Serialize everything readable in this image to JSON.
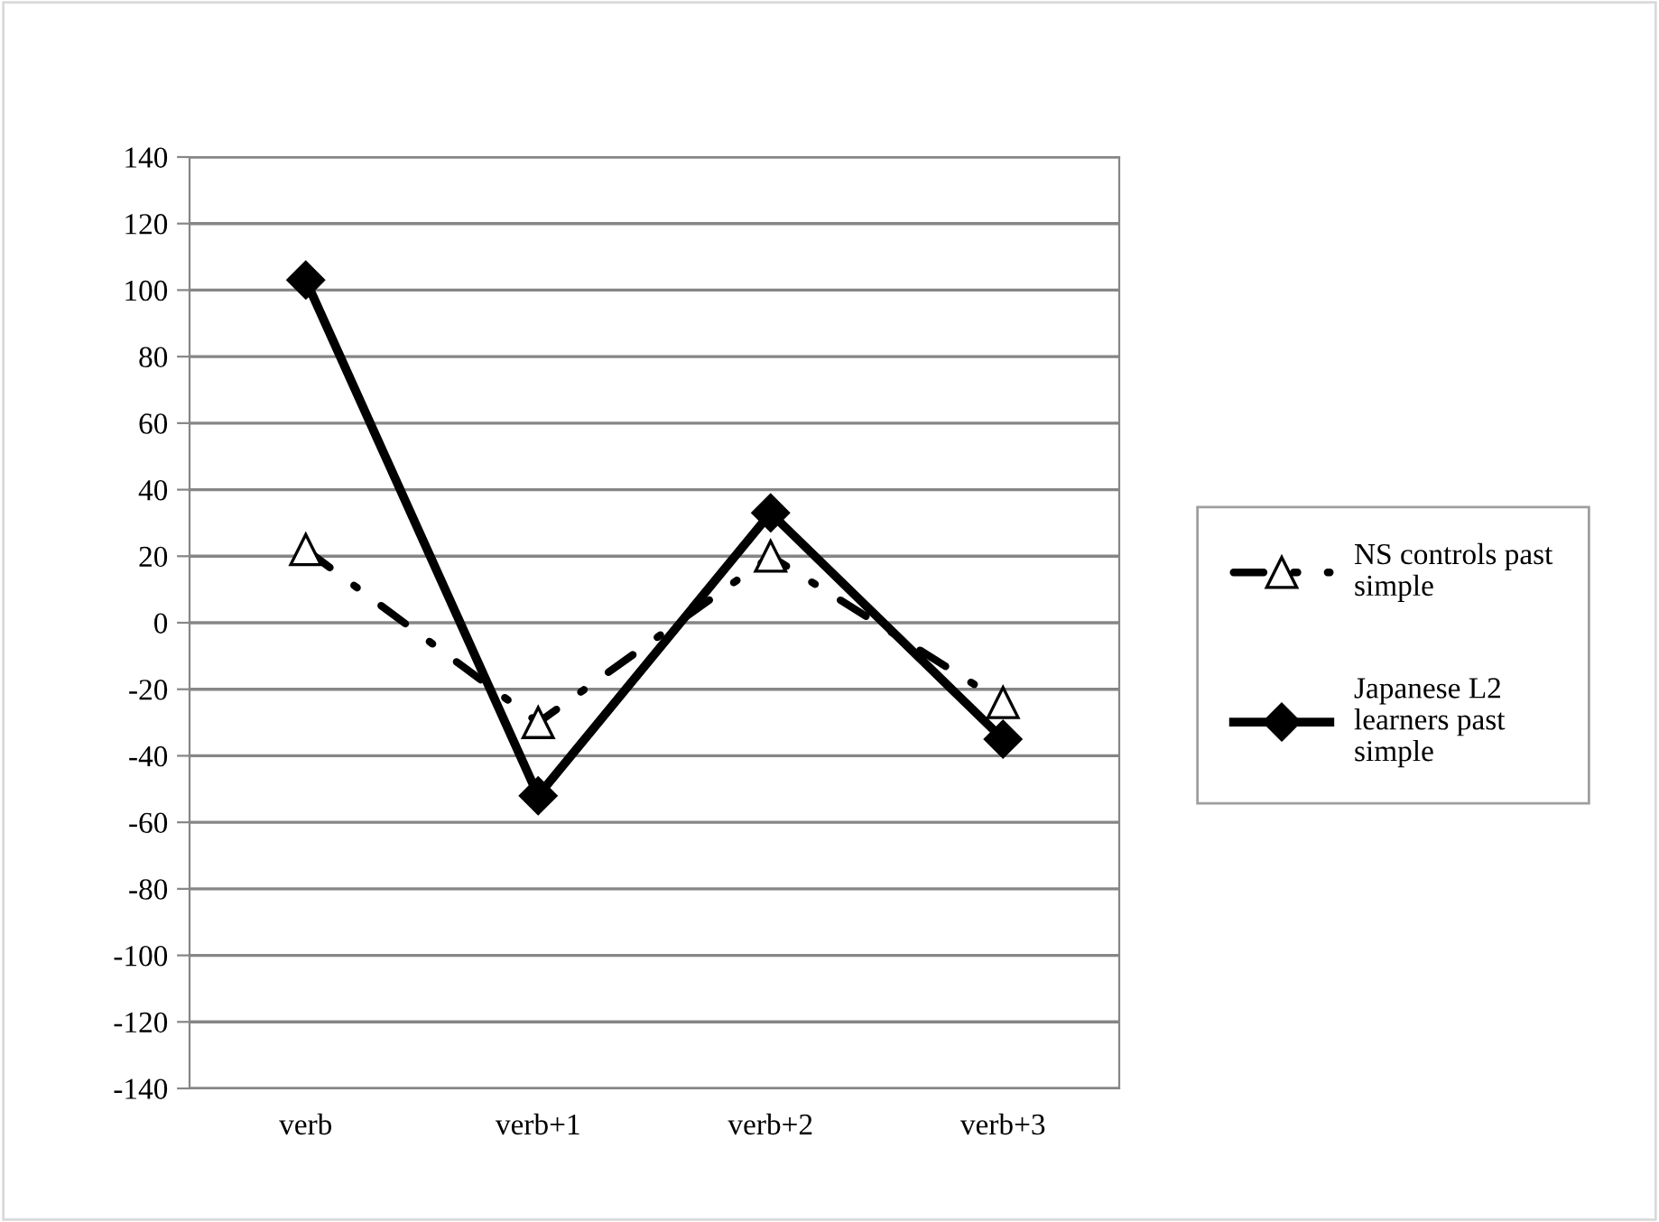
{
  "chart_data": {
    "type": "line",
    "categories": [
      "verb",
      "verb+1",
      "verb+2",
      "verb+3"
    ],
    "series": [
      {
        "name": "NS controls past simple",
        "color": "#000000",
        "values": [
          22,
          -30,
          20,
          -24
        ],
        "marker": "triangle",
        "line_style": "dashdot"
      },
      {
        "name": "Japanese L2 learners past simple",
        "color": "#000000",
        "values": [
          103,
          -52,
          33,
          -35
        ],
        "marker": "diamond",
        "line_style": "solid"
      }
    ],
    "ylim": [
      -140,
      140
    ],
    "yticks": [
      -140,
      -120,
      -100,
      -80,
      -60,
      -40,
      -20,
      0,
      20,
      40,
      60,
      80,
      100,
      120,
      140
    ],
    "grid": "y",
    "legend": "right"
  }
}
